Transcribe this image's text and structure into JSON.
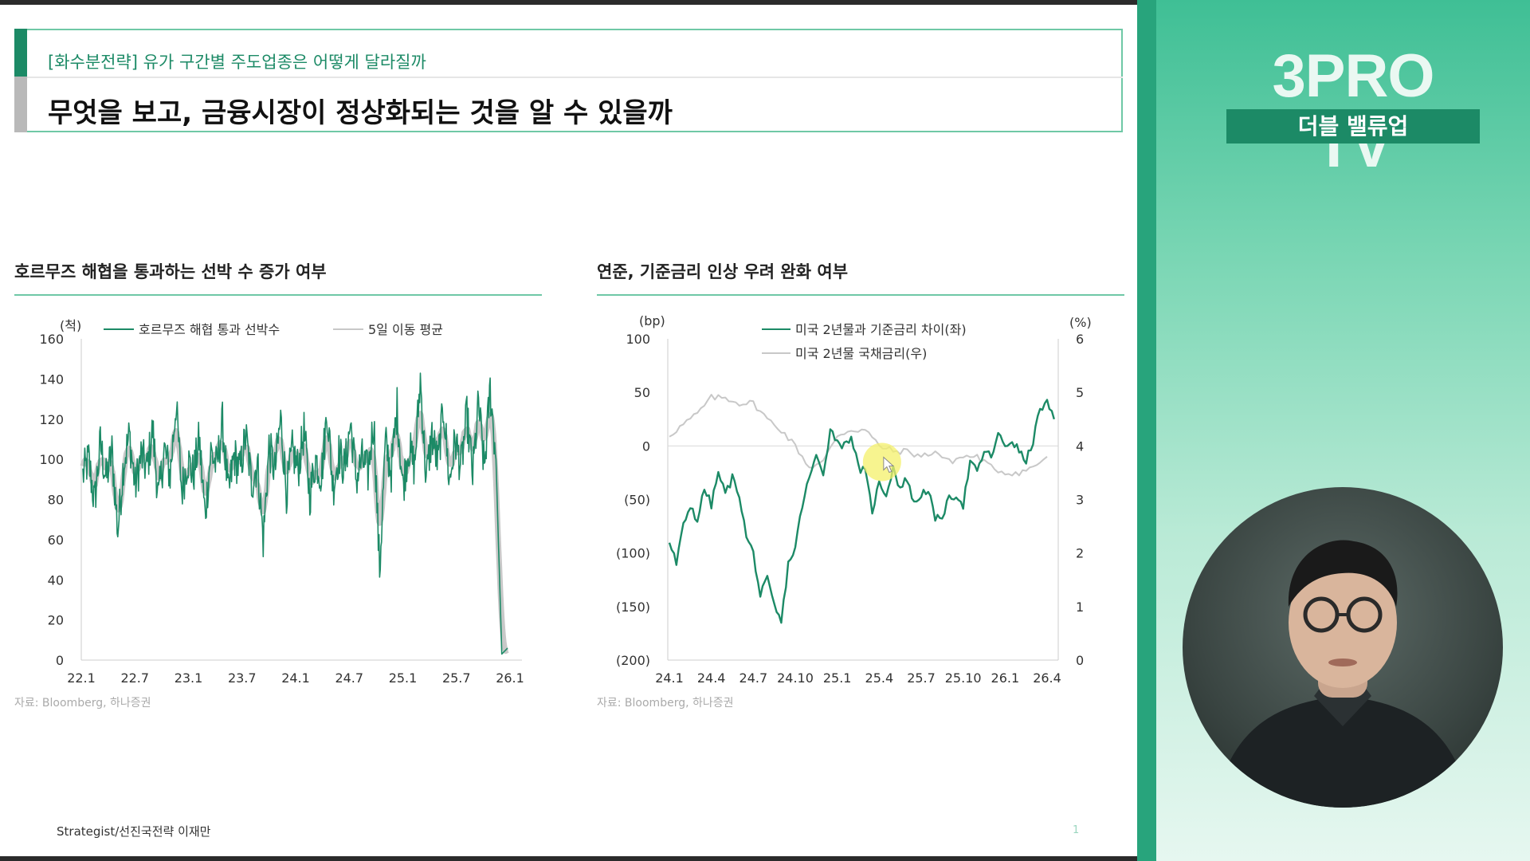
{
  "slide": {
    "subtitle": "[화수분전략] 유가 구간별 주도업종은 어떻게 달라질까",
    "title": "무엇을 보고, 금융시장이 정상화되는 것을 알 수 있을까",
    "footer": "Strategist/선진국전략 이재만",
    "page_number": "1"
  },
  "left_chart_heading": "호르무즈 해협을 통과하는 선박 수 증가 여부",
  "right_chart_heading": "연준, 기준금리 인상 우려 완화 여부",
  "left_source": "자료: Bloomberg, 하나증권",
  "right_source": "자료: Bloomberg, 하나증권",
  "sidebar": {
    "brand": "3PRO TV",
    "show_name": "더블 밸류업"
  },
  "colors": {
    "green": "#1c8a66",
    "gray_line": "#c8c8c8",
    "accent": "#6fc8a6"
  },
  "chart_data": [
    {
      "type": "line",
      "title": "호르무즈 해협을 통과하는 선박 수 증가 여부",
      "y_unit": "(척)",
      "x_ticks": [
        "22.1",
        "22.7",
        "23.1",
        "23.7",
        "24.1",
        "24.7",
        "25.1",
        "25.7",
        "26.1"
      ],
      "y_ticks": [
        "0",
        "20",
        "40",
        "60",
        "80",
        "100",
        "120",
        "140",
        "160"
      ],
      "ylim": [
        0,
        160
      ],
      "legend": [
        "호르무즈 해협 통과 선박수",
        "5일 이동 평균"
      ],
      "legend_position": "top",
      "grid": false,
      "series": [
        {
          "name": "호르무즈 해협 통과 선박수",
          "color": "#1c8a66",
          "description_points": [
            [
              0,
              92
            ],
            [
              1,
              100
            ],
            [
              2,
              78
            ],
            [
              3,
              108
            ],
            [
              4,
              90
            ],
            [
              5,
              104
            ],
            [
              6,
              64
            ],
            [
              7,
              98
            ],
            [
              8,
              112
            ],
            [
              9,
              86
            ],
            [
              10,
              102
            ],
            [
              11,
              95
            ],
            [
              12,
              115
            ],
            [
              13,
              80
            ],
            [
              14,
              105
            ],
            [
              15,
              92
            ],
            [
              16,
              128
            ],
            [
              17,
              84
            ],
            [
              18,
              100
            ],
            [
              19,
              92
            ],
            [
              20,
              110
            ],
            [
              21,
              72
            ],
            [
              22,
              104
            ],
            [
              23,
              96
            ],
            [
              24,
              118
            ],
            [
              25,
              82
            ],
            [
              26,
              102
            ],
            [
              27,
              94
            ],
            [
              28,
              112
            ],
            [
              29,
              88
            ],
            [
              30,
              98
            ],
            [
              31,
              60
            ],
            [
              32,
              106
            ],
            [
              33,
              94
            ],
            [
              34,
              120
            ],
            [
              35,
              84
            ],
            [
              36,
              104
            ],
            [
              37,
              95
            ],
            [
              38,
              114
            ],
            [
              39,
              82
            ],
            [
              40,
              100
            ],
            [
              41,
              92
            ],
            [
              42,
              124
            ],
            [
              43,
              86
            ],
            [
              44,
              103
            ],
            [
              45,
              95
            ],
            [
              46,
              118
            ],
            [
              47,
              90
            ],
            [
              48,
              100
            ],
            [
              49,
              93
            ],
            [
              50,
              120
            ],
            [
              51,
              44
            ],
            [
              52,
              108
            ],
            [
              53,
              94
            ],
            [
              54,
              126
            ],
            [
              55,
              86
            ],
            [
              56,
              106
            ],
            [
              57,
              96
            ],
            [
              58,
              140
            ],
            [
              59,
              90
            ],
            [
              60,
              112
            ],
            [
              61,
              98
            ],
            [
              62,
              126
            ],
            [
              63,
              88
            ],
            [
              64,
              110
            ],
            [
              65,
              96
            ],
            [
              66,
              122
            ],
            [
              67,
              92
            ],
            [
              68,
              128
            ],
            [
              69,
              95
            ],
            [
              70,
              135
            ],
            [
              71,
              100
            ],
            [
              72,
              3
            ],
            [
              73,
              6
            ]
          ],
          "note": "Values vary daily approximately between 60 and 130, with a sharp drop to ~45 around 25.1 and a collapse near 0 at the end after 26.1"
        },
        {
          "name": "5일 이동 평균",
          "color": "#c8c8c8",
          "level_range": [
            90,
            105
          ]
        }
      ]
    },
    {
      "type": "line",
      "title": "연준, 기준금리 인상 우려 완화 여부",
      "left_unit": "(bp)",
      "right_unit": "(%)",
      "x_ticks": [
        "24.1",
        "24.4",
        "24.7",
        "24.10",
        "25.1",
        "25.4",
        "25.7",
        "25.10",
        "26.1",
        "26.4"
      ],
      "left_ticks": [
        "100",
        "50",
        "0",
        "(50)",
        "(100)",
        "(150)",
        "(200)"
      ],
      "right_ticks": [
        "6",
        "5",
        "4",
        "3",
        "2",
        "1",
        "0"
      ],
      "left_ylim": [
        -200,
        100
      ],
      "right_ylim": [
        0,
        6
      ],
      "legend": [
        "미국 2년물과 기준금리 차이(좌)",
        "미국 2년물 국채금리(우)"
      ],
      "legend_position": "top",
      "grid": false,
      "series": [
        {
          "name": "미국 2년물과 기준금리 차이(좌)",
          "axis": "left",
          "color": "#1c8a66",
          "x": [
            0,
            0.5,
            1,
            1.5,
            2,
            2.5,
            3,
            3.5,
            4,
            4.5,
            5,
            5.5,
            6,
            6.5,
            7,
            7.5,
            8,
            8.5,
            9,
            9.5,
            10,
            10.5,
            11,
            11.5,
            12,
            12.5,
            13,
            13.5,
            14,
            14.5,
            15,
            15.5,
            16,
            16.5,
            17,
            17.5,
            18,
            18.5,
            19,
            19.5,
            20,
            20.5,
            21,
            21.5,
            22,
            22.5,
            23,
            23.5,
            24,
            24.5,
            25,
            25.5,
            26,
            26.5,
            27,
            27.5
          ],
          "values": [
            -90,
            -110,
            -75,
            -55,
            -70,
            -40,
            -55,
            -25,
            -45,
            -30,
            -45,
            -85,
            -100,
            -140,
            -125,
            -150,
            -165,
            -110,
            -95,
            -55,
            -30,
            -10,
            -25,
            15,
            5,
            0,
            10,
            -20,
            -25,
            -60,
            -35,
            -45,
            -20,
            -40,
            -30,
            -55,
            -45,
            -40,
            -70,
            -65,
            -50,
            -45,
            -55,
            -15,
            -25,
            -5,
            -10,
            10,
            0,
            5,
            -5,
            -15,
            5,
            35,
            40,
            25
          ]
        },
        {
          "name": "미국 2년물 국채금리(우)",
          "axis": "right",
          "color": "#c8c8c8",
          "x": [
            0,
            1,
            2,
            3,
            4,
            5,
            6,
            7,
            8,
            9,
            10,
            11,
            12,
            13,
            14,
            15,
            16,
            17,
            18,
            19,
            20,
            21,
            22,
            23,
            24,
            25,
            26,
            27
          ],
          "values": [
            4.2,
            4.4,
            4.6,
            4.9,
            4.9,
            4.8,
            4.8,
            4.5,
            4.3,
            4.0,
            3.6,
            3.7,
            4.2,
            4.3,
            4.3,
            4.0,
            3.9,
            3.9,
            3.8,
            3.9,
            3.7,
            3.8,
            3.8,
            3.6,
            3.5,
            3.5,
            3.6,
            3.8
          ]
        }
      ],
      "x_tick_positions": [
        0,
        3,
        6,
        9,
        12,
        15,
        18,
        21,
        24,
        27
      ]
    }
  ]
}
